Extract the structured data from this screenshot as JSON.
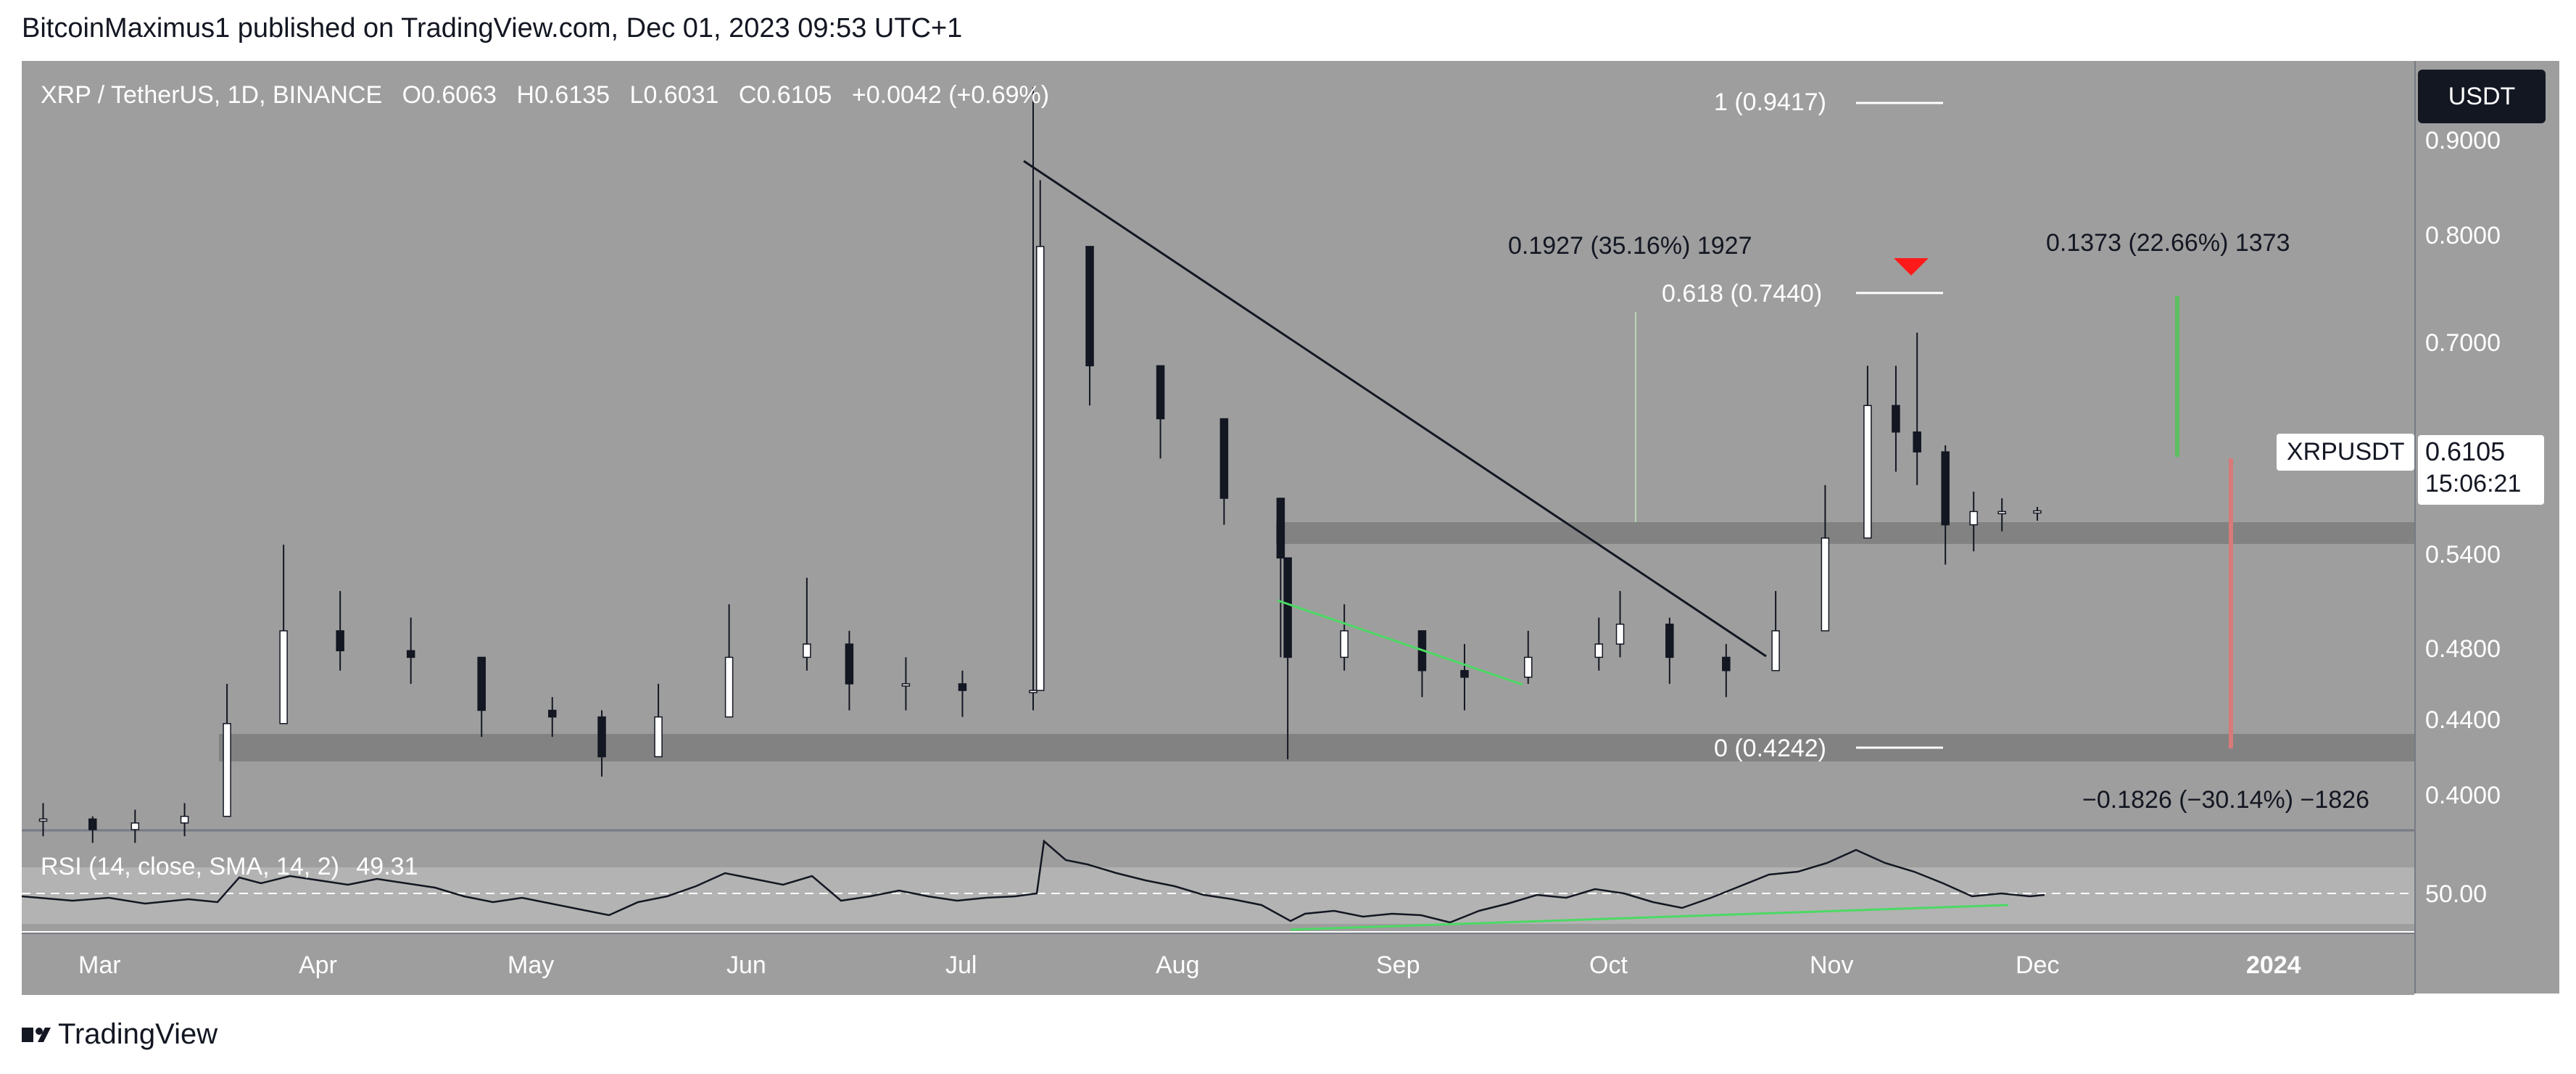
{
  "header": {
    "text": "BitcoinMaximus1 published on TradingView.com, Dec 01, 2023 09:53 UTC+1"
  },
  "ohlc": {
    "symbol": "XRP / TetherUS, 1D, BINANCE",
    "o_label": "O",
    "o": "0.6063",
    "h_label": "H",
    "h": "0.6135",
    "l_label": "L",
    "l": "0.6031",
    "c_label": "C",
    "c": "0.6105",
    "change": "+0.0042 (+0.69%)"
  },
  "currency_button": "USDT",
  "symbol_label": "XRPUSDT",
  "price_tag": {
    "price": "0.6105",
    "countdown": "15:06:21"
  },
  "fib": {
    "level_1": "1 (0.9417)",
    "level_618": "0.618 (0.7440)",
    "level_0": "0 (0.4242)"
  },
  "measurements": {
    "m1": "0.1927 (35.16%) 1927",
    "m2": "0.1373 (22.66%) 1373",
    "m3": "−0.1826 (−30.14%) −1826"
  },
  "rsi": {
    "label": "RSI (14, close, SMA, 14, 2)",
    "value": "49.31",
    "axis_label": "50.00"
  },
  "price_axis": [
    "0.9000",
    "0.8000",
    "0.7000",
    "0.6105",
    "0.5400",
    "0.4800",
    "0.4400",
    "0.4000"
  ],
  "time_axis": [
    "Mar",
    "Apr",
    "May",
    "Jun",
    "Jul",
    "Aug",
    "Sep",
    "Oct",
    "Nov",
    "Dec",
    "2024"
  ],
  "footer": {
    "brand": "TradingView"
  },
  "colors": {
    "background": "#9e9e9e",
    "bull": "#ffffff",
    "bear": "#131722",
    "trend_green": "#4cd964",
    "marker_red": "#ff1a1a",
    "zone": "#7e7e7e"
  },
  "chart_data": {
    "type": "candlestick",
    "title": "XRP / TetherUS, 1D, BINANCE",
    "x": [
      "2023-02-22",
      "2023-03-01",
      "2023-03-07",
      "2023-03-14",
      "2023-03-20",
      "2023-03-28",
      "2023-04-05",
      "2023-04-15",
      "2023-04-25",
      "2023-05-05",
      "2023-05-12",
      "2023-05-20",
      "2023-05-30",
      "2023-06-10",
      "2023-06-16",
      "2023-06-24",
      "2023-07-02",
      "2023-07-12",
      "2023-07-13",
      "2023-07-20",
      "2023-07-30",
      "2023-08-08",
      "2023-08-16",
      "2023-08-17",
      "2023-08-25",
      "2023-09-05",
      "2023-09-11",
      "2023-09-20",
      "2023-09-30",
      "2023-10-03",
      "2023-10-10",
      "2023-10-18",
      "2023-10-25",
      "2023-11-01",
      "2023-11-07",
      "2023-11-11",
      "2023-11-14",
      "2023-11-18",
      "2023-11-22",
      "2023-11-26",
      "2023-12-01"
    ],
    "close": [
      0.378,
      0.37,
      0.375,
      0.38,
      0.45,
      0.52,
      0.505,
      0.5,
      0.46,
      0.455,
      0.425,
      0.455,
      0.5,
      0.51,
      0.48,
      0.48,
      0.475,
      0.475,
      0.81,
      0.72,
      0.68,
      0.62,
      0.575,
      0.5,
      0.52,
      0.49,
      0.485,
      0.5,
      0.51,
      0.525,
      0.5,
      0.49,
      0.52,
      0.59,
      0.69,
      0.67,
      0.655,
      0.6,
      0.61,
      0.61,
      0.6105
    ],
    "high": [
      0.39,
      0.38,
      0.385,
      0.39,
      0.48,
      0.585,
      0.55,
      0.53,
      0.5,
      0.47,
      0.46,
      0.48,
      0.54,
      0.56,
      0.52,
      0.5,
      0.49,
      0.93,
      0.86,
      0.75,
      0.71,
      0.66,
      0.62,
      0.535,
      0.54,
      0.52,
      0.51,
      0.52,
      0.53,
      0.55,
      0.53,
      0.51,
      0.55,
      0.63,
      0.72,
      0.72,
      0.745,
      0.66,
      0.625,
      0.62,
      0.6135
    ],
    "low": [
      0.365,
      0.36,
      0.36,
      0.365,
      0.41,
      0.5,
      0.49,
      0.48,
      0.44,
      0.44,
      0.41,
      0.43,
      0.48,
      0.49,
      0.46,
      0.46,
      0.455,
      0.46,
      0.75,
      0.69,
      0.65,
      0.6,
      0.5,
      0.423,
      0.49,
      0.47,
      0.46,
      0.48,
      0.49,
      0.5,
      0.48,
      0.47,
      0.5,
      0.56,
      0.64,
      0.64,
      0.63,
      0.57,
      0.58,
      0.595,
      0.6031
    ],
    "ylim": [
      0.37,
      0.95
    ],
    "yticks": [
      0.9,
      0.8,
      0.7,
      0.54,
      0.48,
      0.44,
      0.4
    ],
    "xticks": [
      "Mar",
      "Apr",
      "May",
      "Jun",
      "Jul",
      "Aug",
      "Sep",
      "Oct",
      "Nov",
      "Dec",
      "2024"
    ],
    "last_price": 0.6105,
    "horizontal_zones": [
      0.55,
      0.4242
    ],
    "fibonacci": [
      {
        "label": "1 (0.9417)",
        "value": 0.9417
      },
      {
        "label": "0.618 (0.7440)",
        "value": 0.744
      },
      {
        "label": "0 (0.4242)",
        "value": 0.4242
      }
    ],
    "descending_trendline": [
      [
        "2023-07-10",
        0.88
      ],
      [
        "2023-10-24",
        0.47
      ]
    ],
    "support_divergence_line": [
      [
        "2023-08-16",
        0.51
      ],
      [
        "2023-09-22",
        0.455
      ]
    ],
    "measurements": [
      "0.1927 (35.16%) 1927",
      "0.1373 (22.66%) 1373",
      "−0.1826 (−30.14%) −1826"
    ],
    "rsi": {
      "label": "RSI (14, close, SMA, 14, 2)",
      "last": 49.31,
      "reference": 50.0
    }
  }
}
